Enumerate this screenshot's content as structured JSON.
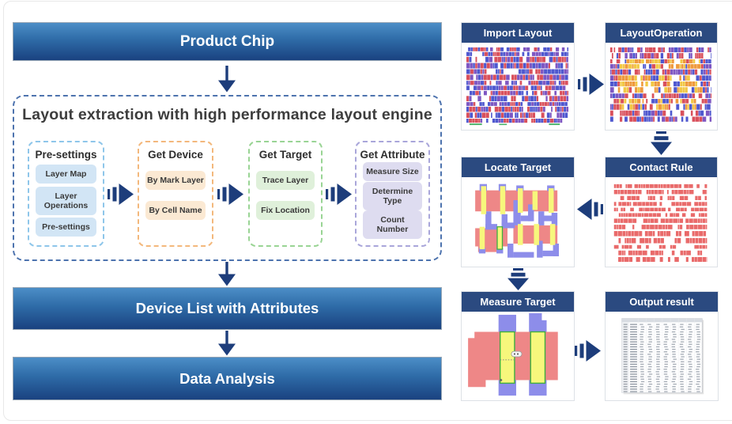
{
  "left": {
    "product_chip": "Product Chip",
    "engine_title": "Layout extraction with high performance layout engine",
    "groups": [
      {
        "title": "Pre-settings",
        "items": [
          "Layer Map",
          "Layer Operations",
          "Pre-settings"
        ]
      },
      {
        "title": "Get Device",
        "items": [
          "By Mark Layer",
          "By Cell Name"
        ]
      },
      {
        "title": "Get Target",
        "items": [
          "Trace Layer",
          "Fix Location"
        ]
      },
      {
        "title": "Get Attribute",
        "items": [
          "Measure Size",
          "Determine Type",
          "Count Number"
        ]
      }
    ],
    "device_list": "Device List with Attributes",
    "data_analysis": "Data Analysis"
  },
  "right": {
    "panels": [
      {
        "title": "Import Layout"
      },
      {
        "title": "LayoutOperation"
      },
      {
        "title": "Locate Target"
      },
      {
        "title": "Contact Rule"
      },
      {
        "title": "Measure Target"
      },
      {
        "title": "Output result"
      }
    ]
  },
  "icons": {
    "flow_arrow_right": "fast-forward right ⏩",
    "flow_arrow_left": "fast-forward left ⏪",
    "flow_arrow_down": "fast-forward down ⏬",
    "arrow_down": "solid down arrow ⬇"
  },
  "colors": {
    "bar_gradient_top": "#4c8ec7",
    "bar_gradient_bottom": "#1a4280",
    "panel_title_bg": "#2b4a80",
    "arrow_navy": "#1d3d7b",
    "outer_dash_blue": "#4d73ae",
    "layout_red": "#d9505c",
    "layout_blue": "#4f58cf",
    "layout_purple": "#7e57c2",
    "layout_orange": "#ef9a3d",
    "layout_yellow": "#f2c844",
    "rule_red": "#e96a6a",
    "salmon": "#ee8787",
    "strip_yellow": "#f7f77c",
    "periwinkle": "#8d8dea",
    "green_outline": "#3fae3f"
  }
}
